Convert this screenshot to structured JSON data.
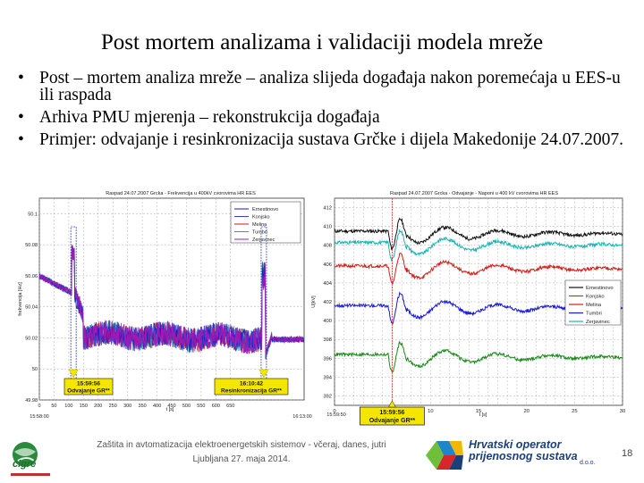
{
  "slide": {
    "title": "Post mortem analizama i validaciji modela mreže",
    "bullets": [
      "Post – mortem analiza mreže – analiza slijeda događaja nakon poremećaja u EES-u ili raspada",
      "Arhiva PMU mjerenja – rekonstrukcija događaja",
      "Primjer: odvajanje i resinkronizacija sustava Grčke i dijela Makedonije 24.07.2007."
    ],
    "footer_line1": "Zaštita in avtomatizacija elektroenergetskih sistemov - včeraj, danes, jutri",
    "footer_line2": "Ljubljana 27. maja 2014.",
    "page_number": "18",
    "logo_left_text": "cigré",
    "logo_right_line1": "Hrvatski operator",
    "logo_right_line2": "prijenosnog sustava",
    "logo_right_suffix": "d.o.o."
  },
  "chart_data": [
    {
      "type": "line",
      "title": "Raspad 24.07.2007 Grcka - Frekvencija u 400kV cvorovima HR EES",
      "xlabel": "t [s]",
      "ylabel": "frekvencija [Hz]",
      "x_ticks": [
        "0",
        "50",
        "100",
        "150",
        "200",
        "250",
        "300",
        "350",
        "400",
        "450",
        "500",
        "550",
        "600",
        "650"
      ],
      "x_start_label": "15:58:00",
      "x_end_label": "16:13:00",
      "y_ticks": [
        "49.98",
        "50",
        "50.02",
        "50.04",
        "50.06",
        "50.08",
        "50.1"
      ],
      "ylim": [
        49.98,
        50.11
      ],
      "legend": [
        "Ernestinovo",
        "Konjsko",
        "Melina",
        "Tumbri",
        "Zerjavinec"
      ],
      "legend_position": "top-right",
      "annotations": [
        {
          "time": "15:59:56",
          "text": "Odvajanje GR**",
          "t": 116
        },
        {
          "time": "16:10:42",
          "text": "Resinkronizacija GR**",
          "t": 763
        }
      ],
      "series": [
        {
          "name": "Ernestinovo",
          "color": "#1a1ac8"
        },
        {
          "name": "Konjsko",
          "color": "#3a3ad0"
        },
        {
          "name": "Melina",
          "color": "#c81a1a"
        },
        {
          "name": "Tumbri",
          "color": "#19a8a8"
        },
        {
          "name": "Zerjavinec",
          "color": "#a01ab0"
        }
      ],
      "grid": true
    },
    {
      "type": "line",
      "title": "Raspad 24.07.2007 Grcka - Odvajanje - Naponi u 400 kV cvorovima HR EES",
      "xlabel": "t [s]",
      "ylabel": "U[kV]",
      "x_ticks": [
        "0",
        "5",
        "10",
        "15",
        "20",
        "25",
        "30"
      ],
      "x_start_label": "15:59:50",
      "y_ticks": [
        "392",
        "394",
        "396",
        "398",
        "400",
        "402",
        "404",
        "406",
        "408",
        "410",
        "412"
      ],
      "ylim": [
        391,
        413
      ],
      "legend": [
        "Ernestinovo",
        "Konjsko",
        "Melina",
        "Tumbri",
        "Zerjavinec"
      ],
      "legend_position": "right",
      "annotations": [
        {
          "time": "15:59:56",
          "text": "Odvajanje GR**",
          "t": 6
        }
      ],
      "series": [
        {
          "name": "Ernestinovo",
          "color": "#111111",
          "base": 409.5
        },
        {
          "name": "Konjsko",
          "color": "#1a8a1a",
          "base": 396.4
        },
        {
          "name": "Melina",
          "color": "#d0211a",
          "base": 405.8
        },
        {
          "name": "Tumbri",
          "color": "#1a1ad8",
          "base": 401.6
        },
        {
          "name": "Zerjavinec",
          "color": "#17b5b5",
          "base": 408.3
        }
      ],
      "grid": true
    }
  ]
}
